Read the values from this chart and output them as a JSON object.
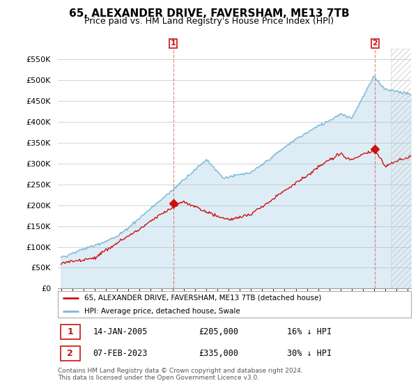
{
  "title": "65, ALEXANDER DRIVE, FAVERSHAM, ME13 7TB",
  "subtitle": "Price paid vs. HM Land Registry's House Price Index (HPI)",
  "title_fontsize": 11,
  "subtitle_fontsize": 9,
  "ylim": [
    0,
    575000
  ],
  "yticks": [
    0,
    50000,
    100000,
    150000,
    200000,
    250000,
    300000,
    350000,
    400000,
    450000,
    500000,
    550000
  ],
  "ytick_labels": [
    "£0",
    "£50K",
    "£100K",
    "£150K",
    "£200K",
    "£250K",
    "£300K",
    "£350K",
    "£400K",
    "£450K",
    "£500K",
    "£550K"
  ],
  "xlim_start": 1994.7,
  "xlim_end": 2026.3,
  "hpi_color": "#7db8d8",
  "hpi_fill_color": "#cce0f0",
  "price_color": "#cc1111",
  "marker1_year": 2005.04,
  "marker1_price": 205000,
  "marker2_year": 2023.09,
  "marker2_price": 335000,
  "purchase1_date": "14-JAN-2005",
  "purchase1_price": "£205,000",
  "purchase1_note": "16% ↓ HPI",
  "purchase2_date": "07-FEB-2023",
  "purchase2_price": "£335,000",
  "purchase2_note": "30% ↓ HPI",
  "legend_label1": "65, ALEXANDER DRIVE, FAVERSHAM, ME13 7TB (detached house)",
  "legend_label2": "HPI: Average price, detached house, Swale",
  "footer": "Contains HM Land Registry data © Crown copyright and database right 2024.\nThis data is licensed under the Open Government Licence v3.0.",
  "background_color": "#ffffff",
  "plot_bg_color": "#ffffff",
  "grid_color": "#cccccc",
  "future_hatch_start": 2024.5
}
